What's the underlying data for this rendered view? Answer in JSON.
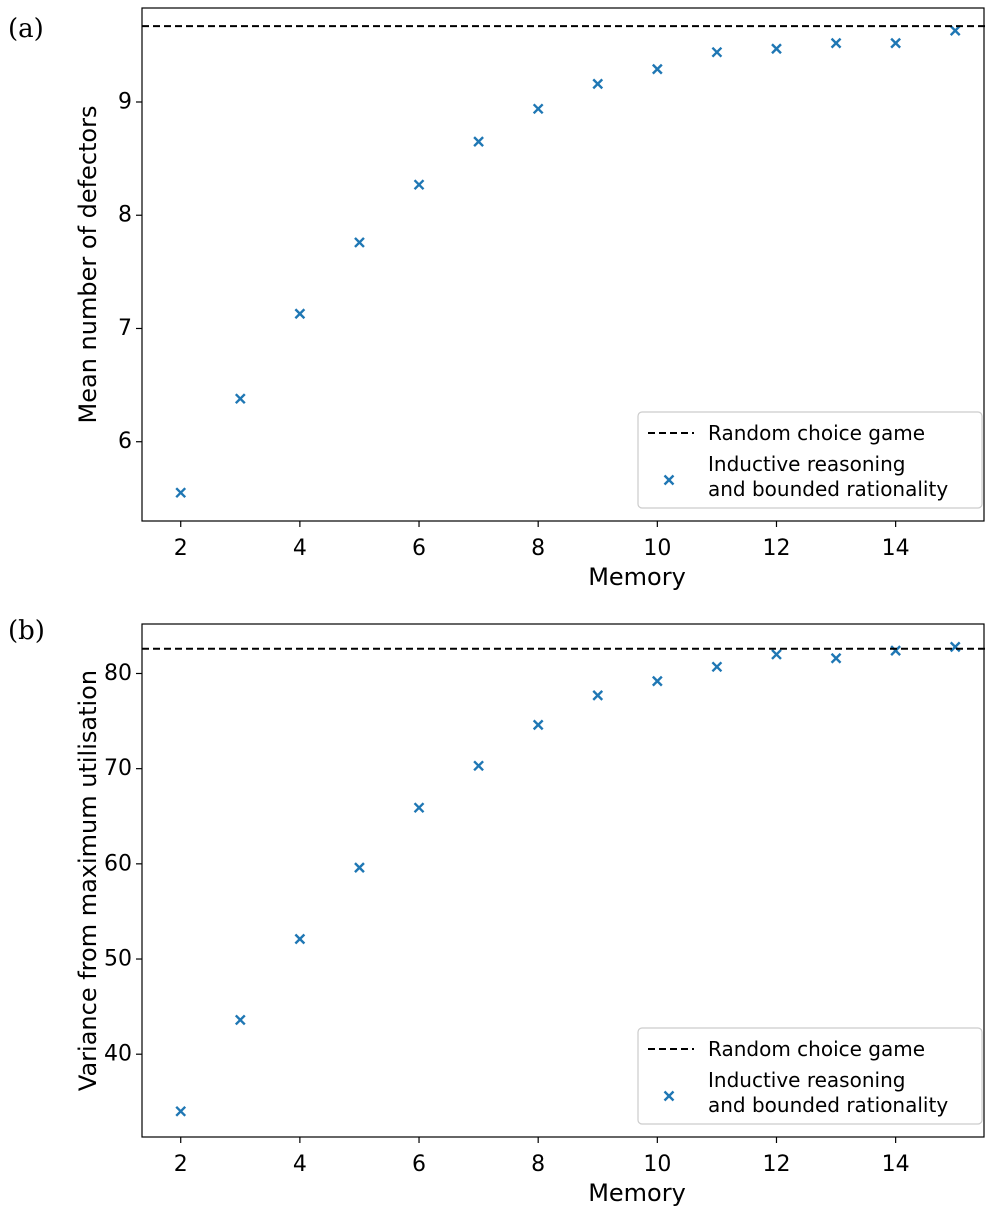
{
  "chart_data": [
    {
      "panel_label": "(a)",
      "type": "scatter",
      "title": "",
      "xlabel": "Memory",
      "ylabel": "Mean number of defectors",
      "xlim": [
        1.35,
        15.5
      ],
      "ylim": [
        5.3,
        9.83
      ],
      "xticks": [
        2,
        4,
        6,
        8,
        10,
        12,
        14
      ],
      "xtick_labels": [
        "2",
        "4",
        "6",
        "8",
        "10",
        "12",
        "14"
      ],
      "yticks": [
        6,
        7,
        8,
        9
      ],
      "ytick_labels": [
        "6",
        "7",
        "8",
        "9"
      ],
      "grid": false,
      "legend_position": "lower-right",
      "series": [
        {
          "name": "Inductive reasoning and bounded rationality",
          "legend_lines": [
            "Inductive reasoning",
            "and bounded rationality"
          ],
          "kind": "scatter",
          "marker": "x",
          "color": "#1f77b4",
          "x": [
            2,
            3,
            4,
            5,
            6,
            7,
            8,
            9,
            10,
            11,
            12,
            13,
            14,
            15
          ],
          "y": [
            5.55,
            6.38,
            7.13,
            7.76,
            8.27,
            8.65,
            8.94,
            9.16,
            9.29,
            9.44,
            9.47,
            9.52,
            9.52,
            9.63
          ]
        },
        {
          "name": "Random choice game",
          "kind": "hline",
          "style": "dashed",
          "color": "#000000",
          "y": 9.67
        }
      ]
    },
    {
      "panel_label": "(b)",
      "type": "scatter",
      "title": "",
      "xlabel": "Memory",
      "ylabel": "Variance from maximum utilisation",
      "xlim": [
        1.35,
        15.5
      ],
      "ylim": [
        31.3,
        85.2
      ],
      "xticks": [
        2,
        4,
        6,
        8,
        10,
        12,
        14
      ],
      "xtick_labels": [
        "2",
        "4",
        "6",
        "8",
        "10",
        "12",
        "14"
      ],
      "yticks": [
        40,
        50,
        60,
        70,
        80
      ],
      "ytick_labels": [
        "40",
        "50",
        "60",
        "70",
        "80"
      ],
      "grid": false,
      "legend_position": "lower-right",
      "series": [
        {
          "name": "Inductive reasoning and bounded rationality",
          "legend_lines": [
            "Inductive reasoning",
            "and bounded rationality"
          ],
          "kind": "scatter",
          "marker": "x",
          "color": "#1f77b4",
          "x": [
            2,
            3,
            4,
            5,
            6,
            7,
            8,
            9,
            10,
            11,
            12,
            13,
            14,
            15
          ],
          "y": [
            34.0,
            43.6,
            52.1,
            59.6,
            65.9,
            70.3,
            74.6,
            77.7,
            79.2,
            80.7,
            82.0,
            81.6,
            82.4,
            82.8
          ]
        },
        {
          "name": "Random choice game",
          "kind": "hline",
          "style": "dashed",
          "color": "#000000",
          "y": 82.6
        }
      ]
    }
  ]
}
